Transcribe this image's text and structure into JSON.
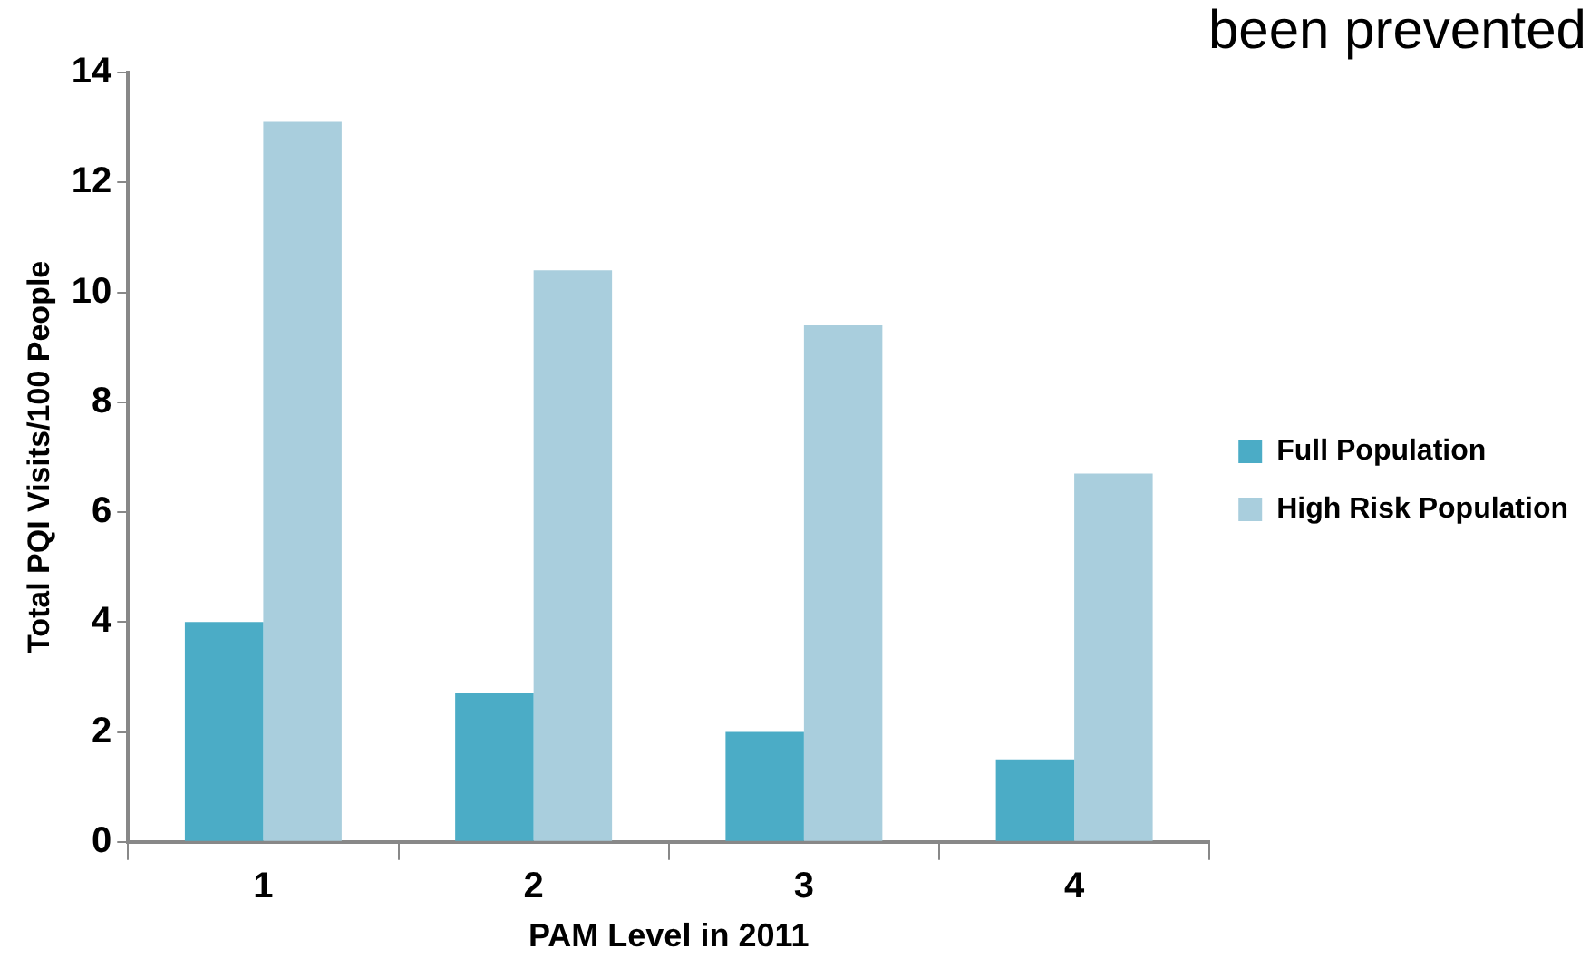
{
  "chart_data": {
    "type": "bar",
    "title": "been prevented",
    "xlabel": "PAM Level in 2011",
    "ylabel": "Total PQI Visits/100 People",
    "categories": [
      "1",
      "2",
      "3",
      "4"
    ],
    "series": [
      {
        "name": "Full Population",
        "color": "#4bacc6",
        "values": [
          4.0,
          2.7,
          2.0,
          1.5
        ]
      },
      {
        "name": "High Risk Population",
        "color": "#a9cedd",
        "values": [
          13.1,
          10.4,
          9.4,
          6.7
        ]
      }
    ],
    "ylim": [
      0,
      14
    ],
    "yticks": [
      0,
      2,
      4,
      6,
      8,
      10,
      12,
      14
    ],
    "grid": false,
    "legend": "right"
  }
}
